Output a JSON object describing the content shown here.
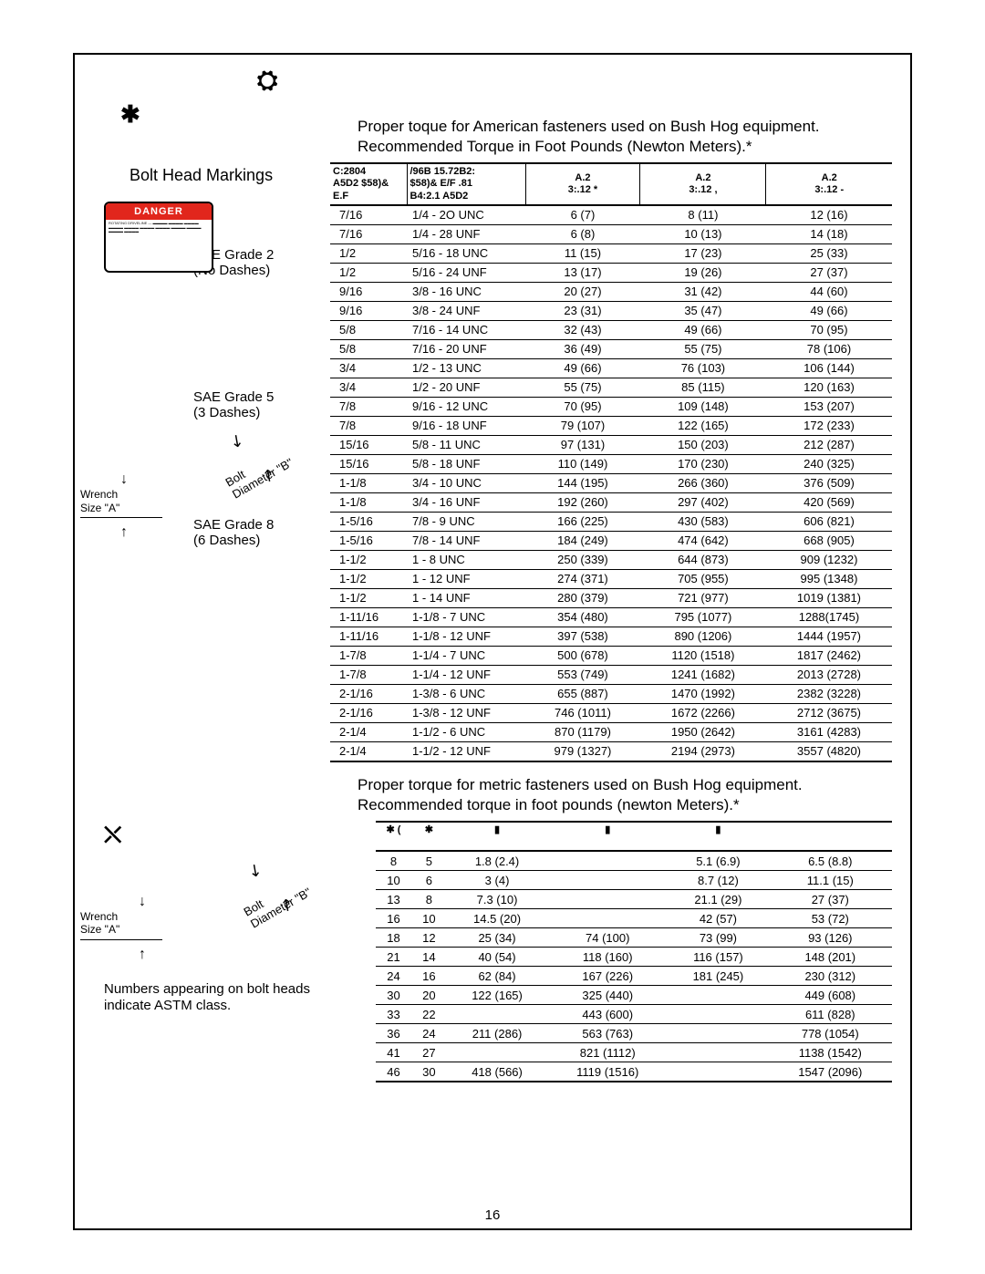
{
  "intro": {
    "line1": "Proper toque for American fasteners used on Bush Hog equipment.",
    "line2": "Recommended Torque in Foot Pounds (Newton Meters).*"
  },
  "bolt_head_markings": "Bolt Head Markings",
  "grades": {
    "g2_line1": "SAE Grade 2",
    "g2_line2": "(No Dashes)",
    "g5_line1": "SAE Grade 5",
    "g5_line2": "(3 Dashes)",
    "g8_line1": "SAE Grade 8",
    "g8_line2": "(6 Dashes)"
  },
  "bolt_label": "Bolt",
  "diameter_label": "Diameter \"B\"",
  "wrench_label_1": "Wrench",
  "wrench_label_2": "Size \"A\"",
  "danger_text": "DANGER",
  "torque_headers": {
    "c1a": "C:2804",
    "c1b": "A5D2 $58)& E.F",
    "c2a": "/96B 15.72B2:",
    "c2b": "$58)& E/F .81",
    "c2c": "B4:2.1 A5D2",
    "c3a": "A.2",
    "c3b": "3:.12 *",
    "c4a": "A.2",
    "c4b": "3:.12 ,",
    "c5a": "A.2",
    "c5b": "3:.12 -"
  },
  "torque_rows": [
    [
      "7/16",
      "1/4 - 2O UNC",
      "6 (7)",
      "8 (11)",
      "12 (16)"
    ],
    [
      "7/16",
      "1/4 - 28 UNF",
      "6 (8)",
      "10 (13)",
      "14 (18)"
    ],
    [
      "1/2",
      "5/16 - 18 UNC",
      "11 (15)",
      "17 (23)",
      "25 (33)"
    ],
    [
      "1/2",
      "5/16 - 24 UNF",
      "13 (17)",
      "19 (26)",
      "27 (37)"
    ],
    [
      "9/16",
      "3/8 - 16 UNC",
      "20 (27)",
      "31 (42)",
      "44 (60)"
    ],
    [
      "9/16",
      "3/8 - 24 UNF",
      "23 (31)",
      "35 (47)",
      "49 (66)"
    ],
    [
      "5/8",
      "7/16 - 14 UNC",
      "32 (43)",
      "49 (66)",
      "70 (95)"
    ],
    [
      "5/8",
      "7/16 - 20 UNF",
      "36 (49)",
      "55 (75)",
      "78 (106)"
    ],
    [
      "3/4",
      "1/2 - 13 UNC",
      "49 (66)",
      "76 (103)",
      "106 (144)"
    ],
    [
      "3/4",
      "1/2 - 20 UNF",
      "55 (75)",
      "85 (115)",
      "120 (163)"
    ],
    [
      "7/8",
      "9/16 - 12 UNC",
      "70 (95)",
      "109 (148)",
      "153 (207)"
    ],
    [
      "7/8",
      "9/16 - 18 UNF",
      "79 (107)",
      "122 (165)",
      "172 (233)"
    ],
    [
      "15/16",
      "5/8 - 11 UNC",
      "97 (131)",
      "150 (203)",
      "212 (287)"
    ],
    [
      "15/16",
      "5/8 - 18 UNF",
      "110 (149)",
      "170 (230)",
      "240 (325)"
    ],
    [
      "1-1/8",
      "3/4 - 10 UNC",
      "144 (195)",
      "266 (360)",
      "376 (509)"
    ],
    [
      "1-1/8",
      "3/4 - 16 UNF",
      "192 (260)",
      "297 (402)",
      "420 (569)"
    ],
    [
      "1-5/16",
      "7/8 - 9 UNC",
      "166 (225)",
      "430 (583)",
      "606 (821)"
    ],
    [
      "1-5/16",
      "7/8 - 14 UNF",
      "184 (249)",
      "474 (642)",
      "668 (905)"
    ],
    [
      "1-1/2",
      "1 - 8 UNC",
      "250 (339)",
      "644 (873)",
      "909 (1232)"
    ],
    [
      "1-1/2",
      "1 - 12 UNF",
      "274 (371)",
      "705 (955)",
      "995 (1348)"
    ],
    [
      "1-1/2",
      "1 - 14 UNF",
      "280 (379)",
      "721 (977)",
      "1019 (1381)"
    ],
    [
      "1-11/16",
      "1-1/8 - 7 UNC",
      "354 (480)",
      "795 (1077)",
      "1288(1745)"
    ],
    [
      "1-11/16",
      "1-1/8 - 12 UNF",
      "397 (538)",
      "890 (1206)",
      "1444 (1957)"
    ],
    [
      "1-7/8",
      "1-1/4 - 7 UNC",
      "500 (678)",
      "1120 (1518)",
      "1817 (2462)"
    ],
    [
      "1-7/8",
      "1-1/4 - 12 UNF",
      "553 (749)",
      "1241 (1682)",
      "2013 (2728)"
    ],
    [
      "2-1/16",
      "1-3/8 - 6 UNC",
      "655 (887)",
      "1470 (1992)",
      "2382 (3228)"
    ],
    [
      "2-1/16",
      "1-3/8 - 12 UNF",
      "746 (1011)",
      "1672 (2266)",
      "2712 (3675)"
    ],
    [
      "2-1/4",
      "1-1/2 - 6 UNC",
      "870 (1179)",
      "1950 (2642)",
      "3161 (4283)"
    ],
    [
      "2-1/4",
      "1-1/2 - 12 UNF",
      "979 (1327)",
      "2194 (2973)",
      "3557 (4820)"
    ]
  ],
  "metric_intro": {
    "line1": "Proper torque for metric fasteners used on Bush Hog equipment.",
    "line2": "Recommended torque in foot pounds (newton Meters).*"
  },
  "metric_headers": [
    "",
    "",
    "",
    "",
    "",
    "",
    ""
  ],
  "metric_rows": [
    [
      "8",
      "5",
      "1.8 (2.4)",
      "",
      "5.1 (6.9)",
      "6.5 (8.8)"
    ],
    [
      "10",
      "6",
      "3 (4)",
      "",
      "8.7 (12)",
      "11.1 (15)"
    ],
    [
      "13",
      "8",
      "7.3 (10)",
      "",
      "21.1 (29)",
      "27 (37)"
    ],
    [
      "16",
      "10",
      "14.5 (20)",
      "",
      "42 (57)",
      "53 (72)"
    ],
    [
      "18",
      "12",
      "25 (34)",
      "74 (100)",
      "73 (99)",
      "93 (126)"
    ],
    [
      "21",
      "14",
      "40 (54)",
      "118 (160)",
      "116 (157)",
      "148 (201)"
    ],
    [
      "24",
      "16",
      "62 (84)",
      "167 (226)",
      "181 (245)",
      "230 (312)"
    ],
    [
      "30",
      "20",
      "122 (165)",
      "325 (440)",
      "",
      "449 (608)"
    ],
    [
      "33",
      "22",
      "",
      "443 (600)",
      "",
      "611 (828)"
    ],
    [
      "36",
      "24",
      "211 (286)",
      "563 (763)",
      "",
      "778 (1054)"
    ],
    [
      "41",
      "27",
      "",
      "821 (1112)",
      "",
      "1138 (1542)"
    ],
    [
      "46",
      "30",
      "418 (566)",
      "1119 (1516)",
      "",
      "1547 (2096)"
    ]
  ],
  "note_line1": "Numbers appearing on bolt heads",
  "note_line2": "indicate ASTM class.",
  "page_number": "16"
}
